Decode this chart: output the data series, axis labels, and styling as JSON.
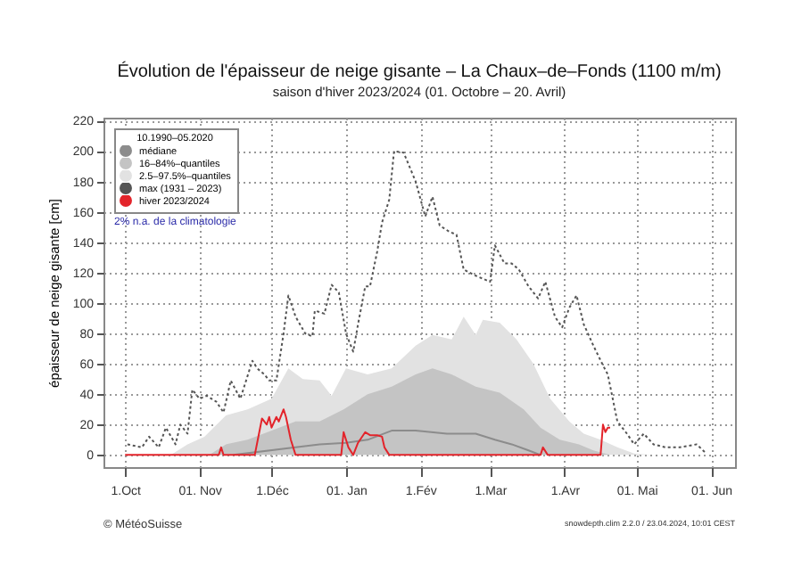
{
  "chart_data": {
    "type": "line",
    "title": "Évolution de l'épaisseur de neige gisante – La Chaux–de–Fonds (1100 m/m)",
    "subtitle": "saison d'hiver 2023/2024 (01. Octobre – 20. Avril)",
    "ylabel": "épaisseur de neige gisante [cm]",
    "legend_title": "10.1990–05.2020",
    "legend": "top left",
    "grid": true,
    "xlim": [
      "2023-09-22",
      "2024-06-11"
    ],
    "xticks": [
      {
        "value": "2023-10-01",
        "label": "1.Oct"
      },
      {
        "value": "2023-11-01",
        "label": "01. Nov"
      },
      {
        "value": "2023-12-01",
        "label": "1.Déc"
      },
      {
        "value": "2024-01-01",
        "label": "01. Jan"
      },
      {
        "value": "2024-02-01",
        "label": "1.Fév"
      },
      {
        "value": "2024-03-01",
        "label": "1.Mar"
      },
      {
        "value": "2024-04-01",
        "label": "1.Avr"
      },
      {
        "value": "2024-05-01",
        "label": "01. Mai"
      },
      {
        "value": "2024-06-01",
        "label": "01. Jun"
      }
    ],
    "ylim": [
      -8,
      222
    ],
    "yticks": [
      0,
      20,
      40,
      60,
      80,
      100,
      120,
      140,
      160,
      180,
      200,
      220
    ],
    "series": [
      {
        "name": "médiane",
        "color": "#8c8c8c",
        "x": [
          "2023-11-15",
          "2023-12-11",
          "2023-12-21",
          "2024-01-01",
          "2024-01-10",
          "2024-01-20",
          "2024-01-30",
          "2024-02-12",
          "2024-02-24",
          "2024-03-03",
          "2024-03-10",
          "2024-03-17",
          "2024-03-22"
        ],
        "values": [
          0,
          5,
          7,
          8,
          10,
          16,
          16,
          14,
          14,
          10,
          7,
          3,
          0
        ]
      },
      {
        "name": "16–84%–quantiles",
        "type": "area",
        "color": "#c4c4c4",
        "x": [
          "2023-11-05",
          "2023-11-12",
          "2023-11-21",
          "2023-12-01",
          "2023-12-11",
          "2023-12-21",
          "2023-12-31",
          "2024-01-10",
          "2024-01-20",
          "2024-01-30",
          "2024-02-06",
          "2024-02-14",
          "2024-02-24",
          "2024-03-05",
          "2024-03-15",
          "2024-03-22",
          "2024-03-30",
          "2024-04-07",
          "2024-04-13",
          "2024-04-20"
        ],
        "values": [
          0,
          7,
          10,
          16,
          22,
          22,
          30,
          40,
          45,
          53,
          57,
          53,
          45,
          41,
          30,
          18,
          10,
          7,
          3,
          0
        ]
      },
      {
        "name": "2.5–97.5%–quantiles",
        "type": "area",
        "color": "#e2e2e2",
        "x": [
          "2023-10-20",
          "2023-10-27",
          "2023-11-03",
          "2023-11-12",
          "2023-11-21",
          "2023-12-01",
          "2023-12-08",
          "2023-12-14",
          "2023-12-21",
          "2023-12-26",
          "2024-01-01",
          "2024-01-10",
          "2024-01-20",
          "2024-01-30",
          "2024-02-06",
          "2024-02-14",
          "2024-02-19",
          "2024-02-24",
          "2024-02-27",
          "2024-03-05",
          "2024-03-12",
          "2024-03-19",
          "2024-03-26",
          "2024-04-03",
          "2024-04-09",
          "2024-04-16",
          "2024-04-23",
          "2024-04-30",
          "2024-05-07"
        ],
        "values": [
          0,
          7,
          12,
          26,
          30,
          37,
          57,
          50,
          49,
          39,
          57,
          53,
          57,
          72,
          79,
          76,
          91,
          79,
          89,
          87,
          76,
          60,
          37,
          22,
          14,
          10,
          5,
          1,
          0
        ]
      },
      {
        "name": "max (1931 – 2023)",
        "line_style": "dotted",
        "color": "#555555",
        "x": [
          "2023-10-02",
          "2023-10-08",
          "2023-10-11",
          "2023-10-15",
          "2023-10-18",
          "2023-10-22",
          "2023-10-24",
          "2023-10-27",
          "2023-10-29",
          "2023-11-01",
          "2023-11-04",
          "2023-11-08",
          "2023-11-11",
          "2023-11-14",
          "2023-11-18",
          "2023-11-20",
          "2023-11-23",
          "2023-11-25",
          "2023-11-28",
          "2023-11-30",
          "2023-12-03",
          "2023-12-06",
          "2023-12-08",
          "2023-12-11",
          "2023-12-15",
          "2023-12-18",
          "2023-12-19",
          "2023-12-23",
          "2023-12-26",
          "2023-12-29",
          "2024-01-01",
          "2024-01-04",
          "2024-01-06",
          "2024-01-09",
          "2024-01-11",
          "2024-01-14",
          "2024-01-16",
          "2024-01-19",
          "2024-01-21",
          "2024-01-25",
          "2024-01-30",
          "2024-02-03",
          "2024-02-06",
          "2024-02-09",
          "2024-02-13",
          "2024-02-16",
          "2024-02-19",
          "2024-02-24",
          "2024-02-27",
          "2024-03-01",
          "2024-03-03",
          "2024-03-07",
          "2024-03-10",
          "2024-03-13",
          "2024-03-17",
          "2024-03-21",
          "2024-03-24",
          "2024-03-28",
          "2024-03-31",
          "2024-04-03",
          "2024-04-06",
          "2024-04-09",
          "2024-04-13",
          "2024-04-17",
          "2024-04-19",
          "2024-04-23",
          "2024-04-27",
          "2024-04-30",
          "2024-05-04",
          "2024-05-08",
          "2024-05-13",
          "2024-05-19",
          "2024-05-26",
          "2024-05-30"
        ],
        "values": [
          7,
          5,
          12,
          5,
          18,
          7,
          20,
          14,
          43,
          37,
          39,
          35,
          28,
          49,
          37,
          47,
          62,
          57,
          53,
          49,
          49,
          80,
          105,
          91,
          80,
          78,
          95,
          93,
          112,
          107,
          80,
          68,
          86,
          111,
          111,
          134,
          153,
          168,
          200,
          199,
          180,
          157,
          170,
          151,
          147,
          145,
          122,
          118,
          116,
          114,
          138,
          126,
          126,
          122,
          111,
          103,
          114,
          91,
          84,
          97,
          105,
          86,
          72,
          59,
          53,
          22,
          14,
          7,
          14,
          7,
          5,
          5,
          7,
          1
        ]
      },
      {
        "name": "hiver 2023/2024",
        "color": "#e3242b",
        "x": [
          "2023-10-01",
          "2023-11-09",
          "2023-11-10",
          "2023-11-11",
          "2023-11-24",
          "2023-11-27",
          "2023-11-29",
          "2023-11-30",
          "2023-12-01",
          "2023-12-03",
          "2023-12-04",
          "2023-12-06",
          "2023-12-07",
          "2023-12-09",
          "2023-12-11",
          "2023-12-30",
          "2023-12-31",
          "2024-01-02",
          "2024-01-04",
          "2024-01-06",
          "2024-01-09",
          "2024-01-11",
          "2024-01-14",
          "2024-01-16",
          "2024-01-17",
          "2024-01-19",
          "2024-03-22",
          "2024-03-23",
          "2024-03-25",
          "2024-04-16",
          "2024-04-17",
          "2024-04-18",
          "2024-04-19",
          "2024-04-20"
        ],
        "values": [
          0,
          0,
          5,
          0,
          0,
          24,
          20,
          25,
          18,
          25,
          22,
          30,
          25,
          10,
          0,
          0,
          15,
          5,
          0,
          8,
          15,
          13,
          13,
          12,
          5,
          0,
          0,
          5,
          0,
          0,
          20,
          15,
          18,
          18
        ]
      }
    ],
    "annotations": [
      "2% n.a. de la climatologie",
      "© MétéoSuisse",
      "snowdepth.clim 2.2.0 / 23.04.2024, 10:01 CEST"
    ]
  }
}
